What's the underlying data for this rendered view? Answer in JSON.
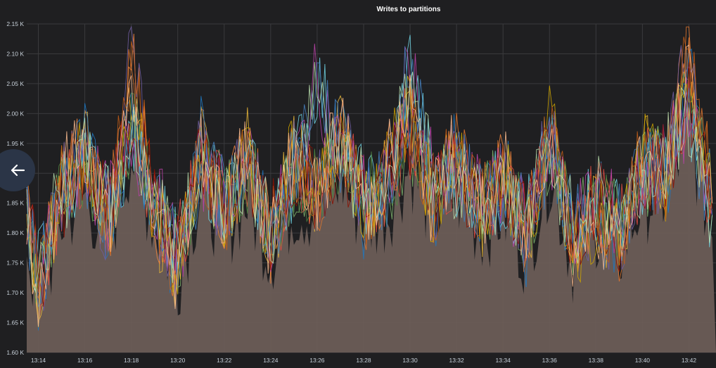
{
  "colors": {
    "background": "#1f1f21",
    "grid": "#3a3a3d",
    "axis_text": "#c7d0d9",
    "fill": "#6b5d57",
    "back_button": "#2b3547"
  },
  "back_icon": "arrow-left-icon",
  "chart_data": {
    "type": "line",
    "title": "Writes to partitions",
    "xlabel": "",
    "ylabel": "",
    "ylim": [
      1600,
      2150
    ],
    "xlim": [
      "13:13:30",
      "13:43:10"
    ],
    "y_ticks": [
      1600,
      1650,
      1700,
      1750,
      1800,
      1850,
      1900,
      1950,
      2000,
      2050,
      2100,
      2150
    ],
    "y_tick_labels": [
      "1.60 K",
      "1.65 K",
      "1.70 K",
      "1.75 K",
      "1.80 K",
      "1.85 K",
      "1.90 K",
      "1.95 K",
      "2.00 K",
      "2.05 K",
      "2.10 K",
      "2.15 K"
    ],
    "x_ticks": [
      "13:14",
      "13:16",
      "13:18",
      "13:20",
      "13:22",
      "13:24",
      "13:26",
      "13:28",
      "13:30",
      "13:32",
      "13:34",
      "13:36",
      "13:38",
      "13:40",
      "13:42"
    ],
    "grid": true,
    "legend": "none",
    "stacked_fill": true,
    "series_colors": [
      "#e0752d",
      "#7eb26d",
      "#eab839",
      "#6ed0e0",
      "#ef843c",
      "#e24d42",
      "#1f78c1",
      "#ba43a9",
      "#705da0",
      "#508642",
      "#cca300",
      "#447ebc",
      "#c15c17",
      "#890f02",
      "#f9ba8f",
      "#b7dbab"
    ],
    "series": [
      {
        "x": [
          "13:13:30",
          "13:14:00",
          "13:15:00",
          "13:16:00",
          "13:17:00",
          "13:18:00",
          "13:19:00",
          "13:20:00",
          "13:21:00",
          "13:22:00",
          "13:23:00",
          "13:24:00",
          "13:25:00",
          "13:26:00",
          "13:27:00",
          "13:28:00",
          "13:29:00",
          "13:30:00",
          "13:31:00",
          "13:32:00",
          "13:33:00",
          "13:34:00",
          "13:35:00",
          "13:36:00",
          "13:37:00",
          "13:38:00",
          "13:39:00",
          "13:40:00",
          "13:41:00",
          "13:42:00",
          "13:43:00"
        ],
        "values": [
          1860,
          1700,
          1880,
          1940,
          1800,
          2100,
          1840,
          1740,
          1950,
          1820,
          1940,
          1790,
          1930,
          1860,
          1980,
          1840,
          1900,
          2000,
          1850,
          1940,
          1830,
          1900,
          1790,
          1980,
          1780,
          1840,
          1790,
          1930,
          1890,
          2120,
          1860
        ]
      },
      {
        "x": [
          "13:13:30",
          "13:14:00",
          "13:15:00",
          "13:16:00",
          "13:17:00",
          "13:18:00",
          "13:19:00",
          "13:20:00",
          "13:21:00",
          "13:22:00",
          "13:23:00",
          "13:24:00",
          "13:25:00",
          "13:26:00",
          "13:27:00",
          "13:28:00",
          "13:29:00",
          "13:30:00",
          "13:31:00",
          "13:32:00",
          "13:33:00",
          "13:34:00",
          "13:35:00",
          "13:36:00",
          "13:37:00",
          "13:38:00",
          "13:39:00",
          "13:40:00",
          "13:41:00",
          "13:42:00",
          "13:43:00"
        ],
        "values": [
          1830,
          1720,
          1860,
          1910,
          1830,
          1980,
          1860,
          1770,
          1920,
          1850,
          1900,
          1810,
          1890,
          1880,
          1940,
          1860,
          1880,
          1960,
          1870,
          1910,
          1850,
          1880,
          1810,
          1950,
          1800,
          1860,
          1810,
          1900,
          1910,
          2020,
          1840
        ]
      },
      {
        "x": [
          "13:13:30",
          "13:14:00",
          "13:15:00",
          "13:16:00",
          "13:17:00",
          "13:18:00",
          "13:19:00",
          "13:20:00",
          "13:21:00",
          "13:22:00",
          "13:23:00",
          "13:24:00",
          "13:25:00",
          "13:26:00",
          "13:27:00",
          "13:28:00",
          "13:29:00",
          "13:30:00",
          "13:31:00",
          "13:32:00",
          "13:33:00",
          "13:34:00",
          "13:35:00",
          "13:36:00",
          "13:37:00",
          "13:38:00",
          "13:39:00",
          "13:40:00",
          "13:41:00",
          "13:42:00",
          "13:43:00"
        ],
        "values": [
          1850,
          1690,
          1890,
          1950,
          1810,
          2010,
          1830,
          1730,
          1960,
          1830,
          1950,
          1780,
          1940,
          1850,
          1990,
          1830,
          1910,
          2010,
          1840,
          1950,
          1820,
          1910,
          1780,
          1990,
          1770,
          1830,
          1780,
          1940,
          1880,
          2060,
          1850
        ]
      },
      {
        "x": [
          "13:13:30",
          "13:14:00",
          "13:15:00",
          "13:16:00",
          "13:17:00",
          "13:18:00",
          "13:19:00",
          "13:20:00",
          "13:21:00",
          "13:22:00",
          "13:23:00",
          "13:24:00",
          "13:25:00",
          "13:26:00",
          "13:27:00",
          "13:28:00",
          "13:29:00",
          "13:30:00",
          "13:31:00",
          "13:32:00",
          "13:33:00",
          "13:34:00",
          "13:35:00",
          "13:36:00",
          "13:37:00",
          "13:38:00",
          "13:39:00",
          "13:40:00",
          "13:41:00",
          "13:42:00",
          "13:43:00"
        ],
        "values": [
          1820,
          1740,
          1870,
          1920,
          1840,
          1960,
          1870,
          1760,
          1910,
          1860,
          1920,
          1800,
          1900,
          2060,
          1930,
          1870,
          1870,
          2090,
          1880,
          1900,
          1860,
          1870,
          1820,
          1940,
          1810,
          1870,
          1820,
          1890,
          1920,
          2000,
          1830
        ]
      }
    ]
  }
}
